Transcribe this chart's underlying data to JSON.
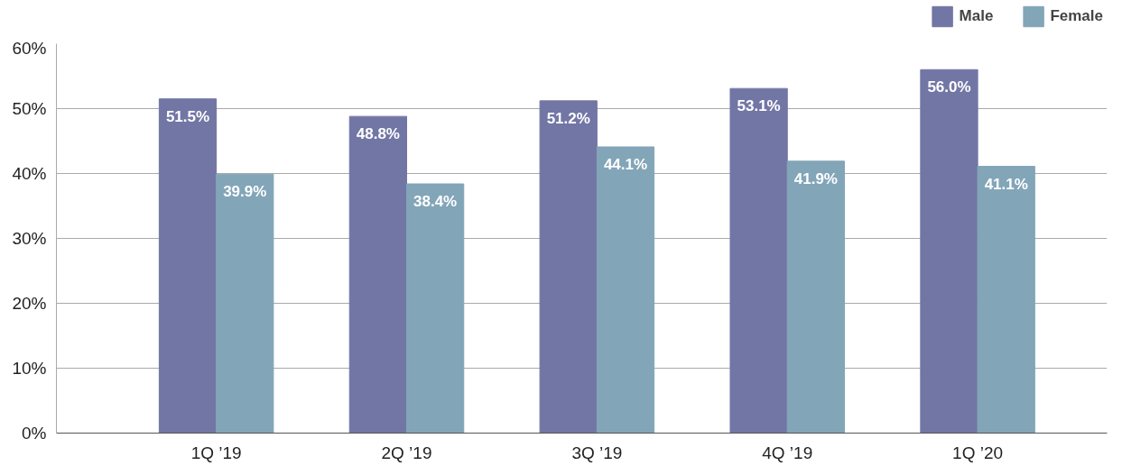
{
  "chart_data": {
    "type": "bar",
    "categories": [
      "1Q ’19",
      "2Q ’19",
      "3Q ’19",
      "4Q ’19",
      "1Q ’20"
    ],
    "series": [
      {
        "name": "Male",
        "color": "#7276a5",
        "values": [
          51.5,
          48.8,
          51.2,
          53.1,
          56.0
        ],
        "value_labels": [
          "51.5%",
          "48.8%",
          "51.2%",
          "53.1%",
          "56.0%"
        ]
      },
      {
        "name": "Female",
        "color": "#82a5b8",
        "values": [
          39.9,
          38.4,
          44.1,
          41.9,
          41.1
        ],
        "value_labels": [
          "39.9%",
          "38.4%",
          "44.1%",
          "41.9%",
          "41.1%"
        ]
      }
    ],
    "ylim": [
      0,
      60
    ],
    "yticks": [
      {
        "value": 0,
        "label": "0%"
      },
      {
        "value": 10,
        "label": "10%"
      },
      {
        "value": 20,
        "label": "20%"
      },
      {
        "value": 30,
        "label": "30%"
      },
      {
        "value": 40,
        "label": "40%"
      },
      {
        "value": 50,
        "label": "50%"
      },
      {
        "value": 60,
        "label": "60%"
      }
    ],
    "grid": "y",
    "legend": "top right"
  }
}
